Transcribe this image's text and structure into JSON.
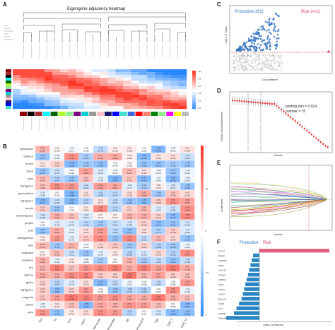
{
  "panels": {
    "A": {
      "letter": "A",
      "title": "Eigengene adjacency heatmap",
      "legend_ticks": [
        "1.0",
        "0.8",
        "0.6",
        "0.4",
        "0.2",
        "0.0"
      ]
    },
    "B": {
      "letter": "B",
      "modules": [
        "lightyellow",
        "darkred",
        "brown",
        "black",
        "cyan",
        "darkgreen",
        "greenyellow",
        "lightgreen",
        "purple",
        "darkturquoise",
        "grey60",
        "pink",
        "midnightblue",
        "blue",
        "turquoise",
        "royalblue",
        "red",
        "salmon",
        "green",
        "lightgreen",
        "magenta",
        "yellow",
        "grey"
      ],
      "cell_types": [
        "Th2",
        "Th",
        "Tcm",
        "MAIT",
        "Monocyte",
        "Macrophage",
        "NK",
        "Neutrophil",
        "Tgd",
        "CD8_T",
        "CD8_T2"
      ],
      "legend_ticks": [
        "1",
        "0.5",
        "0",
        "-0.5",
        "-1"
      ]
    },
    "C": {
      "letter": "C",
      "protective": "Protective(192)",
      "risk": "Risk (n=1)",
      "xlabel": "Cox coefficient",
      "ylabel": "-log10 (P value)"
    },
    "D": {
      "letter": "D",
      "lambda_min": "lambda.min = 0.014",
      "number": "number = 15",
      "xlabel": "lambda",
      "ylabel": "Partial Likelihood Deviance"
    },
    "E": {
      "letter": "E",
      "xlabel": "lambda",
      "ylabel": "Coefficients"
    },
    "F": {
      "letter": "F",
      "protective": "Protective",
      "risk": "Risk",
      "xlabel": "Lasso Coefficients",
      "genes": [
        "SYTL3",
        "MS4A1",
        "FAM62B",
        "CBP3",
        "LGALS2",
        "SPINK2",
        "AMPD1",
        "STAP",
        "TDGF1",
        "KLRC3",
        "BOLA1A",
        "CCR6",
        "CD1",
        "TAPBPL",
        "FAM169A"
      ],
      "values": [
        0.55,
        -0.05,
        -0.06,
        -0.07,
        -0.08,
        -0.09,
        -0.1,
        -0.11,
        -0.12,
        -0.13,
        -0.14,
        -0.16,
        -0.18,
        -0.2,
        -0.26
      ]
    }
  }
}
